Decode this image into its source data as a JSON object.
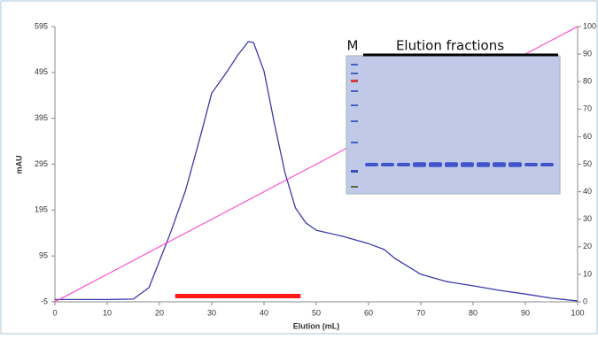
{
  "chart_data": {
    "type": "line",
    "y_label": "mAU",
    "x_label": "Elution (mL)",
    "xlim": [
      0,
      100
    ],
    "xticks": [
      0,
      10,
      20,
      30,
      40,
      50,
      60,
      70,
      80,
      90,
      100
    ],
    "ylim": [
      -5,
      595
    ],
    "yticks": [
      -5,
      95,
      195,
      295,
      395,
      495,
      595
    ],
    "y2lim": [
      0,
      100
    ],
    "y2ticks": [
      0,
      10,
      20,
      30,
      40,
      50,
      60,
      70,
      80,
      90,
      100
    ],
    "grid": false,
    "series": [
      {
        "color": "#3a3aa8",
        "x": [
          0,
          10,
          15,
          18,
          20,
          22,
          25,
          28,
          30,
          33,
          35,
          37,
          38,
          40,
          42,
          44,
          46,
          48,
          50,
          55,
          60,
          63,
          65,
          70,
          75,
          80,
          85,
          90,
          95,
          100
        ],
        "values": [
          0,
          0,
          1,
          26,
          84,
          142,
          238,
          363,
          450,
          498,
          533,
          562,
          560,
          498,
          383,
          277,
          200,
          167,
          151,
          138,
          122,
          109,
          90,
          55,
          39,
          30,
          20,
          12,
          3,
          -3
        ]
      },
      {
        "color": "#ff33cc",
        "axis": "y2",
        "x": [
          0,
          100
        ],
        "values": [
          0,
          100
        ]
      }
    ],
    "highlight": {
      "x": [
        23,
        47
      ],
      "color": "#ff1a1a"
    },
    "inset": {
      "marker_label": "M",
      "title": "Elution fractions"
    }
  }
}
